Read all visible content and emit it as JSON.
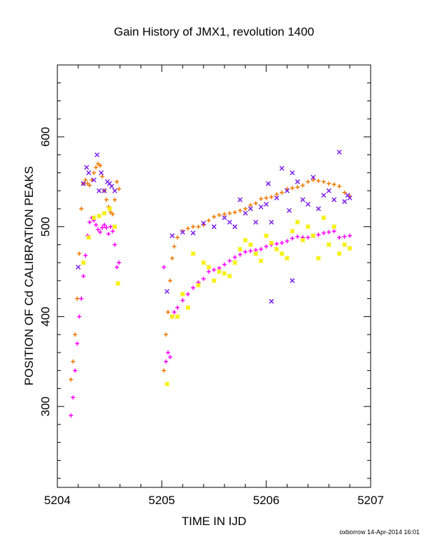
{
  "chart_data": {
    "type": "scatter",
    "title": "Gain History of JMX1, revolution 1400",
    "xlabel": "TIME IN IJD",
    "ylabel": "POSITION OF Cd CALIBRATION PEAKS",
    "xlim": [
      5204,
      5207
    ],
    "ylim": [
      210,
      680
    ],
    "x_ticks": [
      5204,
      5205,
      5206,
      5207
    ],
    "y_ticks": [
      300,
      400,
      500,
      600
    ],
    "grid": false,
    "legend": "none",
    "series": [
      {
        "color": "#f07800",
        "marker": "plus",
        "points": [
          [
            5204.13,
            330
          ],
          [
            5204.15,
            350
          ],
          [
            5204.17,
            380
          ],
          [
            5204.19,
            420
          ],
          [
            5204.21,
            470
          ],
          [
            5204.23,
            520
          ],
          [
            5204.25,
            548
          ],
          [
            5204.27,
            552
          ],
          [
            5204.29,
            548
          ],
          [
            5204.31,
            546
          ],
          [
            5204.33,
            552
          ],
          [
            5204.35,
            560
          ],
          [
            5204.37,
            566
          ],
          [
            5204.39,
            570
          ],
          [
            5204.41,
            568
          ],
          [
            5204.43,
            556
          ],
          [
            5204.45,
            540
          ],
          [
            5204.47,
            530
          ],
          [
            5204.49,
            522
          ],
          [
            5204.51,
            516
          ],
          [
            5204.53,
            514
          ],
          [
            5204.55,
            530
          ],
          [
            5204.57,
            550
          ],
          [
            5204.59,
            542
          ],
          [
            5205.02,
            340
          ],
          [
            5205.04,
            380
          ],
          [
            5205.06,
            405
          ],
          [
            5205.08,
            440
          ],
          [
            5205.1,
            465
          ],
          [
            5205.12,
            478
          ],
          [
            5205.15,
            488
          ],
          [
            5205.2,
            495
          ],
          [
            5205.25,
            498
          ],
          [
            5205.3,
            500
          ],
          [
            5205.35,
            500
          ],
          [
            5205.4,
            502
          ],
          [
            5205.45,
            507
          ],
          [
            5205.5,
            511
          ],
          [
            5205.55,
            513
          ],
          [
            5205.6,
            514
          ],
          [
            5205.65,
            515
          ],
          [
            5205.7,
            516
          ],
          [
            5205.75,
            518
          ],
          [
            5205.8,
            520
          ],
          [
            5205.85,
            524
          ],
          [
            5205.9,
            526
          ],
          [
            5205.95,
            531
          ],
          [
            5206.0,
            532
          ],
          [
            5206.05,
            533
          ],
          [
            5206.1,
            536
          ],
          [
            5206.15,
            538
          ],
          [
            5206.2,
            542
          ],
          [
            5206.25,
            543
          ],
          [
            5206.3,
            544
          ],
          [
            5206.35,
            546
          ],
          [
            5206.4,
            550
          ],
          [
            5206.45,
            552
          ],
          [
            5206.5,
            551
          ],
          [
            5206.55,
            550
          ],
          [
            5206.6,
            548
          ],
          [
            5206.65,
            547
          ],
          [
            5206.7,
            545
          ],
          [
            5206.75,
            538
          ],
          [
            5206.8,
            534
          ]
        ]
      },
      {
        "color": "#ff00ff",
        "marker": "plus",
        "points": [
          [
            5204.13,
            290
          ],
          [
            5204.15,
            310
          ],
          [
            5204.17,
            340
          ],
          [
            5204.19,
            370
          ],
          [
            5204.21,
            400
          ],
          [
            5204.23,
            420
          ],
          [
            5204.25,
            445
          ],
          [
            5204.27,
            468
          ],
          [
            5204.29,
            490
          ],
          [
            5204.31,
            505
          ],
          [
            5204.33,
            510
          ],
          [
            5204.35,
            507
          ],
          [
            5204.37,
            502
          ],
          [
            5204.39,
            497
          ],
          [
            5204.41,
            494
          ],
          [
            5204.43,
            499
          ],
          [
            5204.45,
            502
          ],
          [
            5204.47,
            499
          ],
          [
            5204.49,
            492
          ],
          [
            5204.51,
            500
          ],
          [
            5204.53,
            495
          ],
          [
            5204.55,
            480
          ],
          [
            5204.57,
            455
          ],
          [
            5204.59,
            460
          ],
          [
            5205.02,
            455
          ],
          [
            5205.04,
            350
          ],
          [
            5205.06,
            360
          ],
          [
            5205.08,
            355
          ],
          [
            5205.1,
            400
          ],
          [
            5205.12,
            405
          ],
          [
            5205.15,
            410
          ],
          [
            5205.2,
            418
          ],
          [
            5205.25,
            425
          ],
          [
            5205.3,
            432
          ],
          [
            5205.35,
            438
          ],
          [
            5205.4,
            442
          ],
          [
            5205.45,
            450
          ],
          [
            5205.5,
            452
          ],
          [
            5205.55,
            454
          ],
          [
            5205.6,
            458
          ],
          [
            5205.65,
            462
          ],
          [
            5205.7,
            466
          ],
          [
            5205.75,
            469
          ],
          [
            5205.8,
            472
          ],
          [
            5205.85,
            473
          ],
          [
            5205.9,
            474
          ],
          [
            5205.95,
            475
          ],
          [
            5206.0,
            478
          ],
          [
            5206.05,
            480
          ],
          [
            5206.1,
            481
          ],
          [
            5206.15,
            482
          ],
          [
            5206.2,
            484
          ],
          [
            5206.25,
            487
          ],
          [
            5206.3,
            489
          ],
          [
            5206.35,
            488
          ],
          [
            5206.4,
            488
          ],
          [
            5206.45,
            490
          ],
          [
            5206.5,
            491
          ],
          [
            5206.55,
            493
          ],
          [
            5206.6,
            494
          ],
          [
            5206.65,
            495
          ],
          [
            5206.7,
            488
          ],
          [
            5206.75,
            489
          ],
          [
            5206.8,
            490
          ]
        ]
      },
      {
        "color": "#7b20e8",
        "marker": "cross",
        "points": [
          [
            5204.2,
            455
          ],
          [
            5204.25,
            548
          ],
          [
            5204.28,
            566
          ],
          [
            5204.3,
            560
          ],
          [
            5204.35,
            552
          ],
          [
            5204.38,
            580
          ],
          [
            5204.4,
            540
          ],
          [
            5204.42,
            560
          ],
          [
            5204.45,
            540
          ],
          [
            5204.48,
            550
          ],
          [
            5204.5,
            548
          ],
          [
            5204.52,
            545
          ],
          [
            5204.55,
            540
          ],
          [
            5205.05,
            428
          ],
          [
            5205.1,
            490
          ],
          [
            5205.2,
            494
          ],
          [
            5205.3,
            493
          ],
          [
            5205.4,
            504
          ],
          [
            5205.5,
            500
          ],
          [
            5205.6,
            510
          ],
          [
            5205.65,
            505
          ],
          [
            5205.7,
            500
          ],
          [
            5205.75,
            530
          ],
          [
            5205.8,
            515
          ],
          [
            5205.85,
            520
          ],
          [
            5205.9,
            505
          ],
          [
            5205.95,
            522
          ],
          [
            5206.0,
            525
          ],
          [
            5206.02,
            548
          ],
          [
            5206.05,
            505
          ],
          [
            5206.1,
            532
          ],
          [
            5206.15,
            565
          ],
          [
            5206.2,
            540
          ],
          [
            5206.22,
            518
          ],
          [
            5206.25,
            560
          ],
          [
            5206.3,
            550
          ],
          [
            5206.35,
            530
          ],
          [
            5206.4,
            525
          ],
          [
            5206.45,
            555
          ],
          [
            5206.5,
            520
          ],
          [
            5206.55,
            535
          ],
          [
            5206.6,
            540
          ],
          [
            5206.65,
            530
          ],
          [
            5206.7,
            583
          ],
          [
            5206.75,
            528
          ],
          [
            5206.78,
            535
          ],
          [
            5206.8,
            532
          ],
          [
            5206.05,
            417
          ],
          [
            5206.25,
            440
          ]
        ]
      },
      {
        "color": "#f5f000",
        "marker": "star",
        "points": [
          [
            5204.25,
            460
          ],
          [
            5204.3,
            488
          ],
          [
            5204.35,
            510
          ],
          [
            5204.4,
            512
          ],
          [
            5204.45,
            515
          ],
          [
            5204.5,
            520
          ],
          [
            5204.55,
            500
          ],
          [
            5204.58,
            437
          ],
          [
            5205.05,
            325
          ],
          [
            5205.1,
            400
          ],
          [
            5205.15,
            400
          ],
          [
            5205.2,
            425
          ],
          [
            5205.25,
            410
          ],
          [
            5205.3,
            470
          ],
          [
            5205.35,
            435
          ],
          [
            5205.4,
            460
          ],
          [
            5205.45,
            455
          ],
          [
            5205.5,
            440
          ],
          [
            5205.55,
            450
          ],
          [
            5205.6,
            448
          ],
          [
            5205.65,
            445
          ],
          [
            5205.7,
            460
          ],
          [
            5205.75,
            475
          ],
          [
            5205.8,
            485
          ],
          [
            5205.85,
            480
          ],
          [
            5205.9,
            470
          ],
          [
            5205.95,
            462
          ],
          [
            5206.0,
            490
          ],
          [
            5206.05,
            482
          ],
          [
            5206.1,
            475
          ],
          [
            5206.15,
            470
          ],
          [
            5206.2,
            465
          ],
          [
            5206.25,
            495
          ],
          [
            5206.3,
            505
          ],
          [
            5206.35,
            485
          ],
          [
            5206.4,
            500
          ],
          [
            5206.45,
            490
          ],
          [
            5206.5,
            465
          ],
          [
            5206.55,
            510
          ],
          [
            5206.6,
            480
          ],
          [
            5206.65,
            500
          ],
          [
            5206.7,
            470
          ],
          [
            5206.75,
            480
          ],
          [
            5206.8,
            476
          ]
        ]
      }
    ]
  },
  "footer": {
    "credit": "oxborrow 14-Apr-2014 16:01"
  }
}
